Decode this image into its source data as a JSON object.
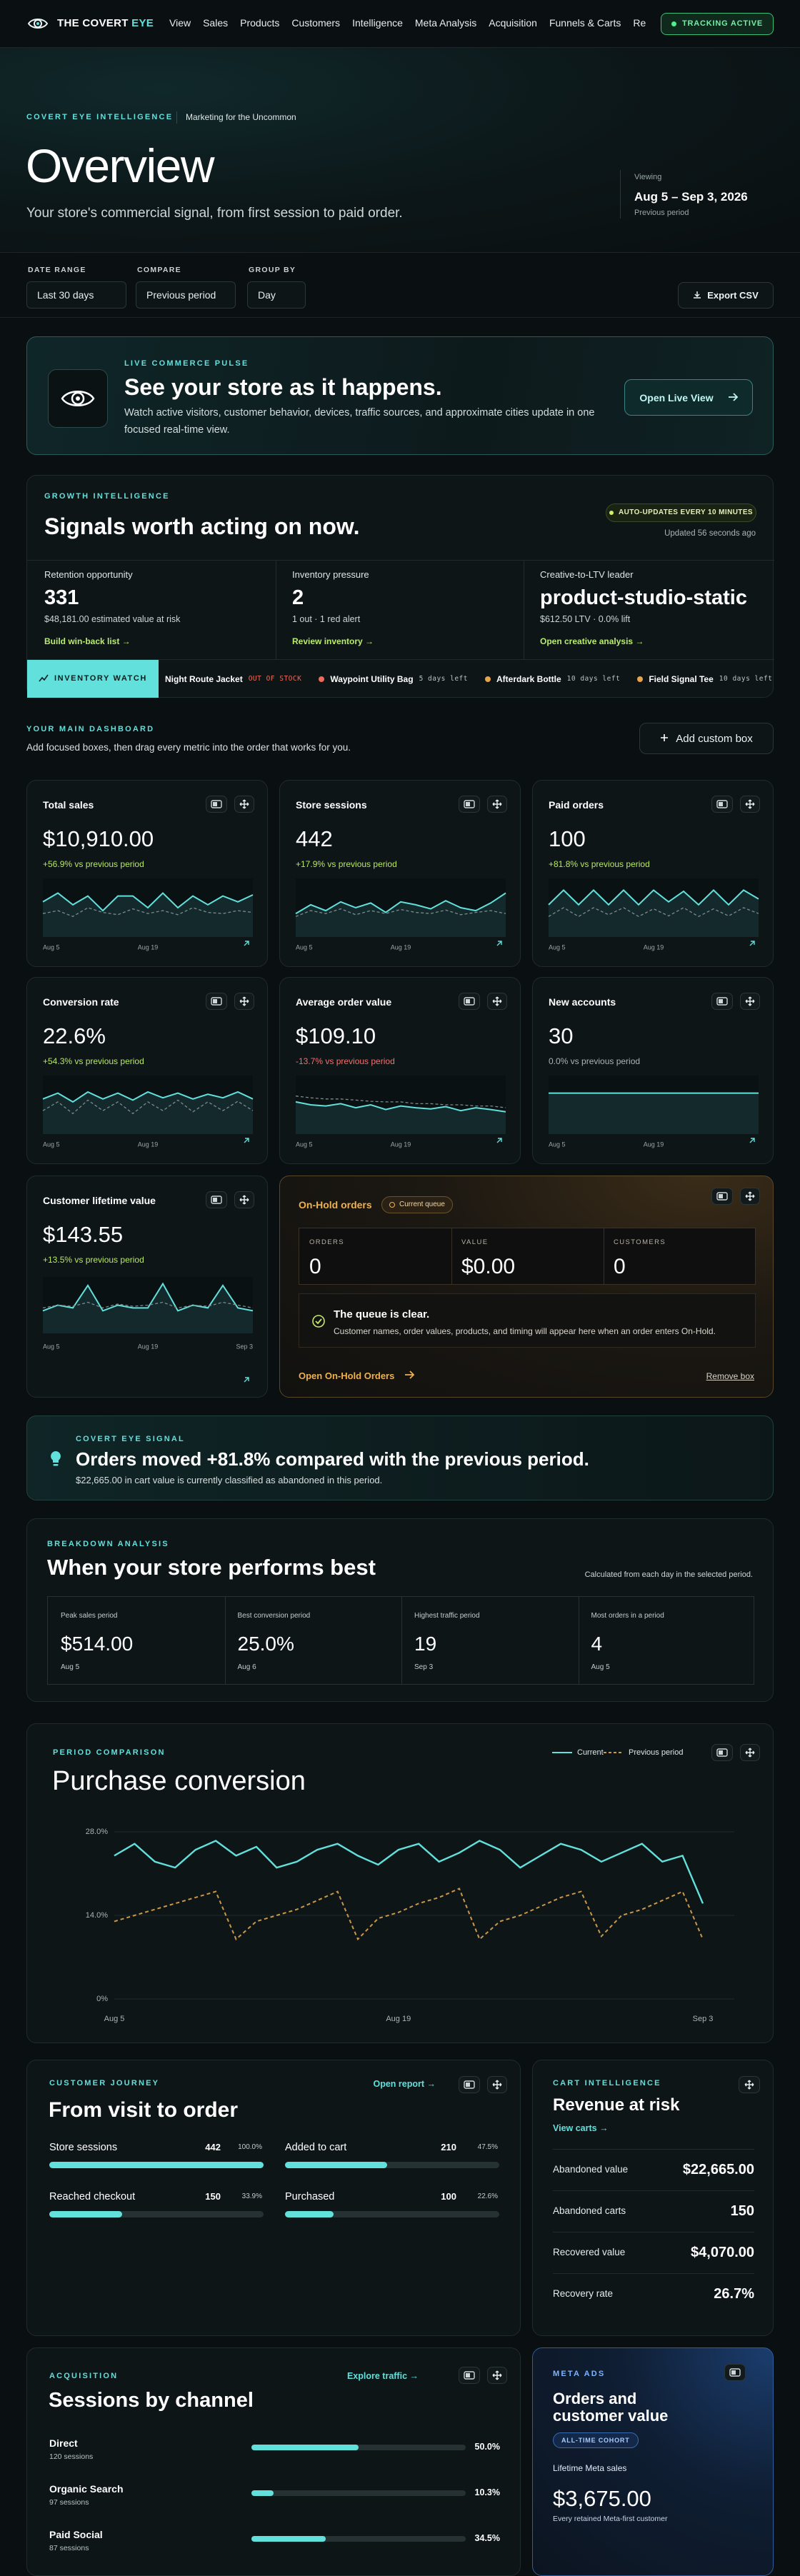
{
  "nav": {
    "brand": "THE COVERT",
    "brand_accent": "EYE",
    "links": [
      "View",
      "Sales",
      "Products",
      "Customers",
      "Intelligence",
      "Meta Analysis",
      "Acquisition",
      "Funnels & Carts",
      "Re"
    ],
    "status": "TRACKING ACTIVE"
  },
  "hero": {
    "eyebrow": "COVERT EYE INTELLIGENCE",
    "tagline": "Marketing for the Uncommon",
    "title": "Overview",
    "subtitle": "Your store's commercial signal, from first session to paid order.",
    "viewing_label": "Viewing",
    "range": "Aug 5 – Sep 3, 2026",
    "compare": "Previous period"
  },
  "filters": {
    "date_range": {
      "label": "DATE RANGE",
      "value": "Last 30 days"
    },
    "compare": {
      "label": "COMPARE",
      "value": "Previous period"
    },
    "group_by": {
      "label": "GROUP BY",
      "value": "Day"
    },
    "export": "Export CSV"
  },
  "pulse": {
    "eyebrow": "LIVE COMMERCE PULSE",
    "title": "See your store as it happens.",
    "text_lines": [
      "Watch active visitors, customer behavior, devices, traffic sources, and approximate cities update in one",
      "focused real-time view."
    ],
    "button": "Open Live View"
  },
  "growth": {
    "eyebrow": "GROWTH INTELLIGENCE",
    "title": "Signals worth acting on now.",
    "badge": "AUTO-UPDATES EVERY 10 MINUTES",
    "updated": "Updated 56 seconds ago",
    "signals": [
      {
        "label": "Retention opportunity",
        "value": "331",
        "detail": "$48,181.00 estimated value at risk",
        "link": "Build win-back list →"
      },
      {
        "label": "Inventory pressure",
        "value": "2",
        "detail": "1 out · 1 red alert",
        "link": "Review inventory →"
      },
      {
        "label": "Creative-to-LTV leader",
        "value": "product-studio-static",
        "detail": "$612.50 LTV · 0.0% lift",
        "link": "Open creative analysis →"
      }
    ]
  },
  "inventory_watch": {
    "label": "INVENTORY WATCH",
    "items": [
      {
        "name": "Night Route Jacket",
        "status": "OUT OF STOCK"
      },
      {
        "name": "Waypoint Utility Bag",
        "status": "5 days left"
      },
      {
        "name": "Afterdark Bottle",
        "status": "10 days left"
      },
      {
        "name": "Field Signal Tee",
        "status": "10 days left"
      }
    ]
  },
  "dashboard": {
    "eyebrow": "YOUR MAIN DASHBOARD",
    "text": "Add focused boxes, then drag every metric into the order that works for you.",
    "add_button": "Add custom box"
  },
  "metrics": {
    "cards": [
      {
        "title": "Total sales",
        "value": "$10,910.00",
        "change": "+56.9% vs previous period",
        "trend": "up",
        "chart": {
          "type": "line",
          "x": [
            "Aug 5",
            null,
            null,
            null,
            null,
            null,
            null,
            "Aug 19",
            null,
            null,
            null,
            null,
            null,
            null,
            null
          ],
          "ylim": [
            0,
            100
          ],
          "series": [
            {
              "color": "#62e0dc",
              "values": [
                60,
                75,
                55,
                70,
                45,
                70,
                70,
                50,
                75,
                50,
                70,
                55,
                70,
                60,
                72
              ]
            },
            {
              "color": "#7d8a8d",
              "style": "dashed",
              "values": [
                40,
                45,
                35,
                50,
                42,
                38,
                48,
                40,
                45,
                38,
                50,
                42,
                40,
                45,
                42
              ]
            }
          ]
        }
      },
      {
        "title": "Store sessions",
        "value": "442",
        "change": "+17.9% vs previous period",
        "trend": "up",
        "chart": {
          "type": "line",
          "x": [
            "Aug 5",
            null,
            null,
            null,
            null,
            null,
            null,
            "Aug 19",
            null,
            null,
            null,
            null,
            null,
            null,
            null
          ],
          "ylim": [
            0,
            100
          ],
          "series": [
            {
              "color": "#62e0dc",
              "values": [
                40,
                55,
                45,
                60,
                50,
                58,
                42,
                60,
                55,
                48,
                62,
                50,
                45,
                58,
                75
              ]
            },
            {
              "color": "#7d8a8d",
              "style": "dashed",
              "values": [
                35,
                45,
                40,
                48,
                38,
                45,
                40,
                47,
                42,
                40,
                46,
                38,
                42,
                45,
                40
              ]
            }
          ]
        }
      },
      {
        "title": "Paid orders",
        "value": "100",
        "change": "+81.8% vs previous period",
        "trend": "up",
        "chart": {
          "type": "line",
          "x": [
            "Aug 5",
            null,
            null,
            null,
            null,
            null,
            null,
            "Aug 19",
            null,
            null,
            null,
            null,
            null,
            null,
            null
          ],
          "ylim": [
            0,
            100
          ],
          "series": [
            {
              "color": "#62e0dc",
              "values": [
                55,
                80,
                55,
                80,
                55,
                80,
                55,
                80,
                60,
                78,
                55,
                80,
                55,
                80,
                65
              ]
            },
            {
              "color": "#7d8a8d",
              "style": "dashed",
              "values": [
                35,
                50,
                35,
                50,
                38,
                50,
                35,
                48,
                36,
                50,
                35,
                48,
                36,
                50,
                40
              ]
            }
          ]
        }
      },
      {
        "title": "Conversion rate",
        "value": "22.6%",
        "change": "+54.3% vs previous period",
        "trend": "up",
        "chart": {
          "type": "line",
          "x": [
            "Aug 5",
            null,
            null,
            null,
            null,
            null,
            null,
            "Aug 19",
            null,
            null,
            null,
            null,
            null,
            null,
            null
          ],
          "ylim": [
            0,
            100
          ],
          "series": [
            {
              "color": "#62e0dc",
              "values": [
                60,
                70,
                55,
                72,
                60,
                70,
                58,
                72,
                62,
                70,
                60,
                68,
                62,
                72,
                60
              ]
            },
            {
              "color": "#7d8a8d",
              "style": "dashed",
              "values": [
                40,
                55,
                35,
                58,
                40,
                55,
                35,
                55,
                40,
                58,
                38,
                55,
                40,
                56,
                40
              ]
            }
          ]
        }
      },
      {
        "title": "Average order value",
        "value": "$109.10",
        "change": "-13.7% vs previous period",
        "trend": "down",
        "chart": {
          "type": "line",
          "x": [
            "Aug 5",
            null,
            null,
            null,
            null,
            null,
            null,
            "Aug 19",
            null,
            null,
            null,
            null,
            null,
            null,
            null
          ],
          "ylim": [
            0,
            100
          ],
          "series": [
            {
              "color": "#62e0dc",
              "values": [
                55,
                50,
                48,
                52,
                45,
                50,
                42,
                48,
                45,
                43,
                47,
                40,
                45,
                42,
                38
              ]
            },
            {
              "color": "#7d8a8d",
              "style": "dashed",
              "values": [
                65,
                62,
                60,
                60,
                58,
                56,
                55,
                55,
                52,
                52,
                50,
                50,
                48,
                48,
                45
              ]
            }
          ]
        }
      },
      {
        "title": "New accounts",
        "value": "30",
        "change": "0.0% vs previous period",
        "trend": "flat",
        "chart": {
          "type": "line",
          "x": [
            "Aug 5",
            null,
            null,
            null,
            null,
            null,
            null,
            "Aug 19",
            null,
            null,
            null,
            null,
            null,
            null,
            null
          ],
          "ylim": [
            0,
            100
          ],
          "series": [
            {
              "color": "#62e0dc",
              "values": [
                70,
                70,
                70,
                70,
                70,
                70,
                70,
                70,
                70,
                70,
                70,
                70,
                70,
                70,
                70
              ]
            }
          ]
        }
      },
      {
        "title": "Customer lifetime value",
        "value": "$143.55",
        "change": "+13.5% vs previous period",
        "trend": "up",
        "chart": {
          "type": "line",
          "x": [
            "Aug 5",
            null,
            null,
            null,
            null,
            null,
            null,
            "Aug 19",
            null,
            null,
            null,
            null,
            null,
            null,
            "Sep 3"
          ],
          "ylim": [
            0,
            100
          ],
          "series": [
            {
              "color": "#62e0dc",
              "values": [
                40,
                50,
                45,
                85,
                40,
                50,
                45,
                45,
                88,
                40,
                50,
                45,
                85,
                45,
                40
              ]
            },
            {
              "color": "#7d8a8d",
              "style": "dashed",
              "values": [
                45,
                50,
                48,
                55,
                45,
                52,
                48,
                50,
                55,
                45,
                50,
                48,
                55,
                50,
                45
              ]
            }
          ]
        }
      }
    ]
  },
  "on_hold": {
    "title": "On-Hold orders",
    "badge": "Current queue",
    "stats": [
      {
        "label": "ORDERS",
        "value": "0"
      },
      {
        "label": "VALUE",
        "value": "$0.00"
      },
      {
        "label": "CUSTOMERS",
        "value": "0"
      }
    ],
    "message_title": "The queue is clear.",
    "message_text": "Customer names, order values, products, and timing will appear here when an order enters On-Hold.",
    "link": "Open On-Hold Orders",
    "remove": "Remove box"
  },
  "signal": {
    "eyebrow": "COVERT EYE SIGNAL",
    "title": "Orders moved +81.8% compared with the previous period.",
    "text": "$22,665.00 in cart value is currently classified as abandoned in this period."
  },
  "breakdown": {
    "eyebrow": "BREAKDOWN ANALYSIS",
    "title": "When your store performs best",
    "note": "Calculated from each day in the selected period.",
    "cells": [
      {
        "label": "Peak sales period",
        "value": "$514.00",
        "date": "Aug 5"
      },
      {
        "label": "Best conversion period",
        "value": "25.0%",
        "date": "Aug 6"
      },
      {
        "label": "Highest traffic period",
        "value": "19",
        "date": "Sep 3"
      },
      {
        "label": "Most orders in a period",
        "value": "4",
        "date": "Aug 5"
      }
    ]
  },
  "period_comparison": {
    "eyebrow": "PERIOD COMPARISON",
    "title": "Purchase conversion",
    "chart": {
      "type": "line",
      "x": [
        "Aug 5",
        null,
        null,
        null,
        null,
        null,
        null,
        null,
        null,
        null,
        null,
        null,
        null,
        null,
        "Aug 19",
        null,
        null,
        null,
        null,
        null,
        null,
        null,
        null,
        null,
        null,
        null,
        null,
        null,
        null,
        "Sep 3"
      ],
      "ylim": [
        0,
        28
      ],
      "yticks": [
        {
          "value": 0,
          "label": "0%"
        },
        {
          "value": 14,
          "label": "14.0%"
        },
        {
          "value": 28,
          "label": "28.0%"
        }
      ],
      "grid": true,
      "series": [
        {
          "name": "Current",
          "color": "#62e0dc",
          "values": [
            24,
            26,
            23,
            22,
            25,
            26.5,
            24,
            25.5,
            22,
            23,
            25,
            26,
            24,
            22.5,
            25,
            26,
            23,
            24.5,
            26.5,
            25,
            22,
            24,
            26,
            25,
            23,
            24.5,
            26,
            23,
            24,
            16
          ]
        },
        {
          "name": "Previous period",
          "color": "#c9974a",
          "style": "dashed",
          "values": [
            13,
            14,
            15,
            16,
            17,
            18,
            10,
            13,
            14,
            15,
            16.5,
            18,
            10,
            13.5,
            14.5,
            16,
            17,
            18.5,
            10,
            13,
            14,
            15.5,
            17,
            18,
            10.5,
            14,
            15,
            16.5,
            18,
            10
          ]
        }
      ]
    }
  },
  "journey": {
    "eyebrow": "CUSTOMER JOURNEY",
    "title": "From visit to order",
    "link": "Open report →",
    "steps": [
      {
        "name": "Store sessions",
        "count": "442",
        "share": 100,
        "share_label": "100.0%"
      },
      {
        "name": "Added to cart",
        "count": "210",
        "share": 47.5,
        "share_label": "47.5%"
      },
      {
        "name": "Reached checkout",
        "count": "150",
        "share": 33.9,
        "share_label": "33.9%"
      },
      {
        "name": "Purchased",
        "count": "100",
        "share": 22.6,
        "share_label": "22.6%"
      }
    ]
  },
  "cart": {
    "eyebrow": "CART INTELLIGENCE",
    "title": "Revenue at risk",
    "link": "View carts →",
    "rows": [
      {
        "label": "Abandoned value",
        "value": "$22,665.00"
      },
      {
        "label": "Abandoned carts",
        "value": "150"
      },
      {
        "label": "Recovered value",
        "value": "$4,070.00"
      },
      {
        "label": "Recovery rate",
        "value": "26.7%"
      }
    ]
  },
  "acquisition": {
    "eyebrow": "ACQUISITION",
    "title": "Sessions by channel",
    "link": "Explore traffic →",
    "channels": [
      {
        "name": "Direct",
        "sessions": "120 sessions",
        "share": 50,
        "share_label": "50.0%"
      },
      {
        "name": "Organic Search",
        "sessions": "97 sessions",
        "share": 10.3,
        "share_label": "10.3%"
      },
      {
        "name": "Paid Social",
        "sessions": "87 sessions",
        "share": 34.5,
        "share_label": "34.5%"
      }
    ]
  },
  "meta_ads": {
    "eyebrow": "META ADS",
    "title_lines": [
      "Orders and",
      "customer value"
    ],
    "badge": "ALL-TIME COHORT",
    "label": "Lifetime Meta sales",
    "value": "$3,675.00",
    "note": "Every retained Meta-first customer"
  }
}
